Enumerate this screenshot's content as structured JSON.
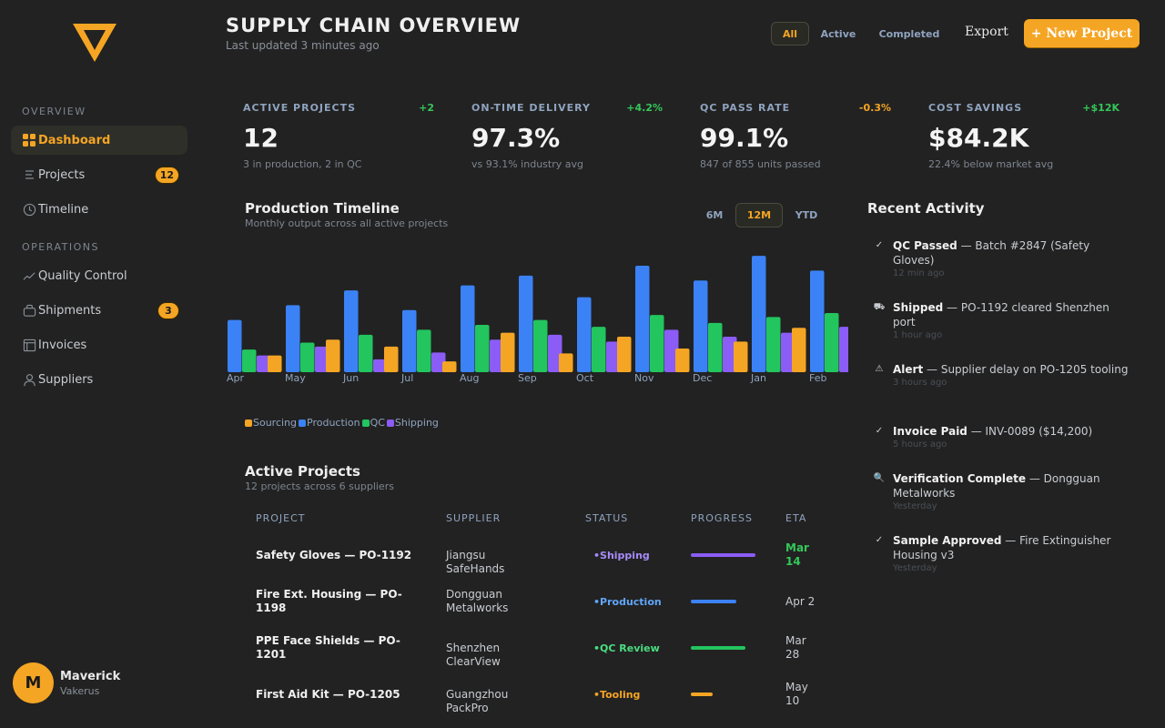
{
  "sidebar": {
    "overview_label": "OVERVIEW",
    "operations_label": "OPERATIONS",
    "items": [
      {
        "label": "Dashboard",
        "icon": "grid-icon"
      },
      {
        "label": "Projects",
        "badge": "12",
        "icon": "list-icon"
      },
      {
        "label": "Timeline",
        "icon": "clock-icon"
      },
      {
        "label": "Quality Control",
        "icon": "trend-icon"
      },
      {
        "label": "Shipments",
        "badge": "3",
        "icon": "package-icon"
      },
      {
        "label": "Invoices",
        "icon": "layout-icon"
      },
      {
        "label": "Suppliers",
        "icon": "user-icon"
      }
    ],
    "user": {
      "initial": "M",
      "name": "Maverick",
      "org": "Vakerus"
    }
  },
  "header": {
    "title": "SUPPLY CHAIN OVERVIEW",
    "subtitle": "Last updated 3 minutes ago",
    "filters": [
      "All",
      "Active",
      "Completed"
    ],
    "export_label": "Export",
    "new_project_label": "+ New Project"
  },
  "kpis": [
    {
      "label": "ACTIVE PROJECTS",
      "delta": "+2",
      "value": "12",
      "sub": "3 in production, 2 in QC",
      "delta_color": "#34c759"
    },
    {
      "label": "ON-TIME DELIVERY",
      "delta": "+4.2%",
      "value": "97.3%",
      "sub": "vs 93.1% industry avg",
      "delta_color": "#34c759"
    },
    {
      "label": "QC PASS RATE",
      "delta": "-0.3%",
      "value": "99.1%",
      "sub": "847 of 855 units passed",
      "delta_color": "#f5a524"
    },
    {
      "label": "COST SAVINGS",
      "delta": "+$12K",
      "value": "$84.2K",
      "sub": "22.4% below market avg",
      "delta_color": "#34c759"
    }
  ],
  "timeline": {
    "title": "Production Timeline",
    "subtitle": "Monthly output across all active projects",
    "ranges": [
      "6M",
      "12M",
      "YTD"
    ]
  },
  "chart_data": {
    "type": "bar",
    "categories": [
      "Apr",
      "May",
      "Jun",
      "Jul",
      "Aug",
      "Sep",
      "Oct",
      "Nov",
      "Dec",
      "Jan",
      "Feb"
    ],
    "ylim": [
      0,
      120
    ],
    "series": [
      {
        "name": "Sourcing",
        "color": "#f5a524",
        "values": [
          20,
          17,
          33,
          26,
          11,
          40,
          19,
          36,
          24,
          31,
          45
        ]
      },
      {
        "name": "Production",
        "color": "#3b82f6",
        "values": [
          53,
          68,
          83,
          63,
          88,
          98,
          76,
          108,
          93,
          118,
          103
        ]
      },
      {
        "name": "QC",
        "color": "#22c55e",
        "values": [
          23,
          30,
          38,
          43,
          48,
          53,
          46,
          58,
          50,
          56,
          60
        ]
      },
      {
        "name": "Shipping",
        "color": "#8b5cf6",
        "values": [
          17,
          26,
          13,
          20,
          33,
          38,
          31,
          43,
          36,
          40,
          46
        ]
      }
    ],
    "legend_position": "bottom-left",
    "grid": false
  },
  "projects": {
    "title": "Active Projects",
    "subtitle": "12 projects across 6 suppliers",
    "columns": [
      "PROJECT",
      "SUPPLIER",
      "STATUS",
      "PROGRESS",
      "ETA"
    ],
    "rows": [
      {
        "project": "Safety Gloves — PO-1192",
        "supplier": "Jiangsu SafeHands",
        "status": "Shipping",
        "status_color": "#a78bfa",
        "progress": 0.85,
        "bar_color": "#8b5cf6",
        "eta": "Mar 14",
        "eta_color": "#34c759"
      },
      {
        "project": "Fire Ext. Housing — PO-1198",
        "supplier": "Dongguan Metalworks",
        "status": "Production",
        "status_color": "#60a5fa",
        "progress": 0.6,
        "bar_color": "#3b82f6",
        "eta": "Apr 2",
        "eta_color": "#c9cdd2"
      },
      {
        "project": "PPE Face Shields — PO-1201",
        "supplier": "Shenzhen ClearView",
        "status": "QC Review",
        "status_color": "#4ade80",
        "progress": 0.72,
        "bar_color": "#22c55e",
        "eta": "Mar 28",
        "eta_color": "#c9cdd2"
      },
      {
        "project": "First Aid Kit — PO-1205",
        "supplier": "Guangzhou PackPro",
        "status": "Tooling",
        "status_color": "#f5a524",
        "progress": 0.28,
        "bar_color": "#f5a524",
        "eta": "May 10",
        "eta_color": "#c9cdd2"
      }
    ]
  },
  "activity": {
    "title": "Recent Activity",
    "items": [
      {
        "icon": "check-icon",
        "glyph": "✓",
        "title": "QC Passed",
        "desc": " — Batch #2847 (Safety Gloves)",
        "time": "12 min ago"
      },
      {
        "icon": "ship-icon",
        "glyph": "⛟",
        "title": "Shipped",
        "desc": " — PO-1192 cleared Shenzhen port",
        "time": "1 hour ago"
      },
      {
        "icon": "alert-icon",
        "glyph": "⚠",
        "title": "Alert",
        "desc": " — Supplier delay on PO-1205 tooling",
        "time": "3 hours ago"
      },
      {
        "icon": "check-icon",
        "glyph": "✓",
        "title": "Invoice Paid",
        "desc": " — INV-0089 ($14,200)",
        "time": "5 hours ago"
      },
      {
        "icon": "search-icon",
        "glyph": "🔍",
        "title": "Verification Complete",
        "desc": " — Dongguan Metalworks",
        "time": "Yesterday"
      },
      {
        "icon": "check-icon",
        "glyph": "✓",
        "title": "Sample Approved",
        "desc": " — Fire Extinguisher Housing v3",
        "time": "Yesterday"
      }
    ]
  }
}
